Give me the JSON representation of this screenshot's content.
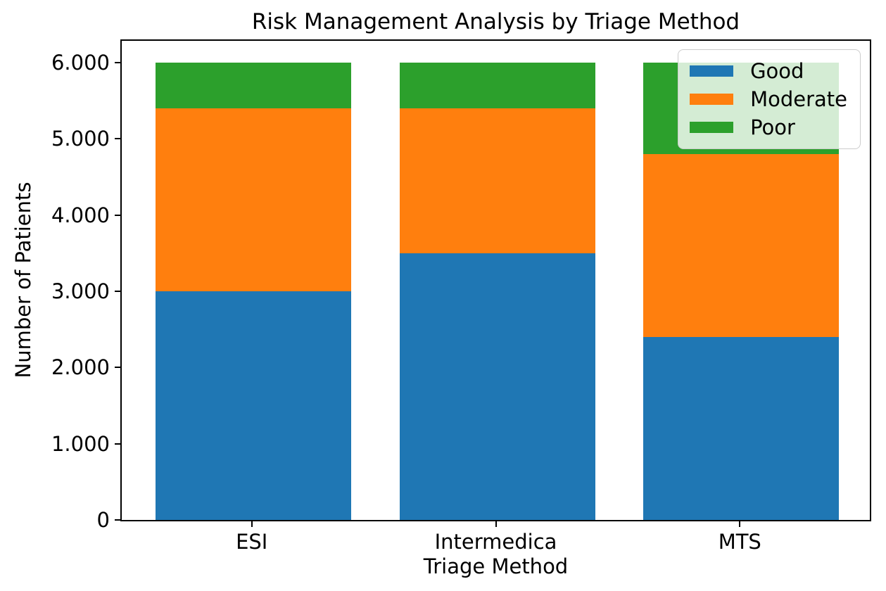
{
  "chart_data": {
    "type": "bar",
    "stacked": true,
    "title": "Risk Management Analysis by Triage Method",
    "xlabel": "Triage Method",
    "ylabel": "Number of Patients",
    "categories": [
      "ESI",
      "Intermedica",
      "MTS"
    ],
    "series": [
      {
        "name": "Good",
        "color": "#1f77b4",
        "values": [
          3000,
          3500,
          2400
        ]
      },
      {
        "name": "Moderate",
        "color": "#ff7f0e",
        "values": [
          2400,
          1900,
          2400
        ]
      },
      {
        "name": "Poor",
        "color": "#2ca02c",
        "values": [
          600,
          600,
          1200
        ]
      }
    ],
    "totals_per_category": [
      6000,
      6000,
      6000
    ],
    "ylim": [
      0,
      6000
    ],
    "yticks": [
      {
        "value": 0,
        "label": "0"
      },
      {
        "value": 1000,
        "label": "1.000"
      },
      {
        "value": 2000,
        "label": "2.000"
      },
      {
        "value": 3000,
        "label": "3.000"
      },
      {
        "value": 4000,
        "label": "4.000"
      },
      {
        "value": 5000,
        "label": "5.000"
      },
      {
        "value": 6000,
        "label": "6.000"
      }
    ],
    "legend": {
      "position": "upper-right",
      "entries": [
        "Good",
        "Moderate",
        "Poor"
      ]
    },
    "grid": false,
    "background_color": "#ffffff",
    "axes_edge_color": "#000000"
  }
}
